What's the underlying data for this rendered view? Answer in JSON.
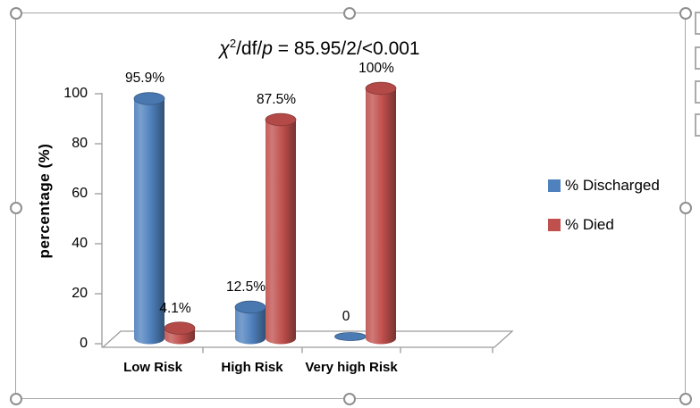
{
  "chart_data": {
    "type": "bar",
    "subtype": "3d-cylinder-clustered",
    "title": "χ²/df/p = 85.95/2/<0.001",
    "title_parts": {
      "chi": "χ",
      "chi_sup": "2",
      "mid": "/df/",
      "p_var": "p",
      "rest": " = 85.95/2/<0.001"
    },
    "categories": [
      "Low Risk",
      "High Risk",
      "Very high Risk"
    ],
    "series": [
      {
        "name": "% Discharged",
        "color": "#4F81BD",
        "values": [
          95.9,
          12.5,
          0
        ],
        "labels": [
          "95.9%",
          "12.5%",
          "0"
        ]
      },
      {
        "name": "% Died",
        "color": "#C0504D",
        "values": [
          4.1,
          87.5,
          100
        ],
        "labels": [
          "4.1%",
          "87.5%",
          "100%"
        ]
      }
    ],
    "xlabel": "",
    "ylabel": "percentage (%)",
    "yticks": [
      0,
      20,
      40,
      60,
      80,
      100
    ],
    "ylim": [
      0,
      100
    ],
    "grid": false,
    "legend_position": "right",
    "axis_color": "#9c9c9c"
  },
  "selection": {
    "handle_color": "#8f8f8f",
    "border_color": "#a6a6a6",
    "side_button_count": 4
  }
}
